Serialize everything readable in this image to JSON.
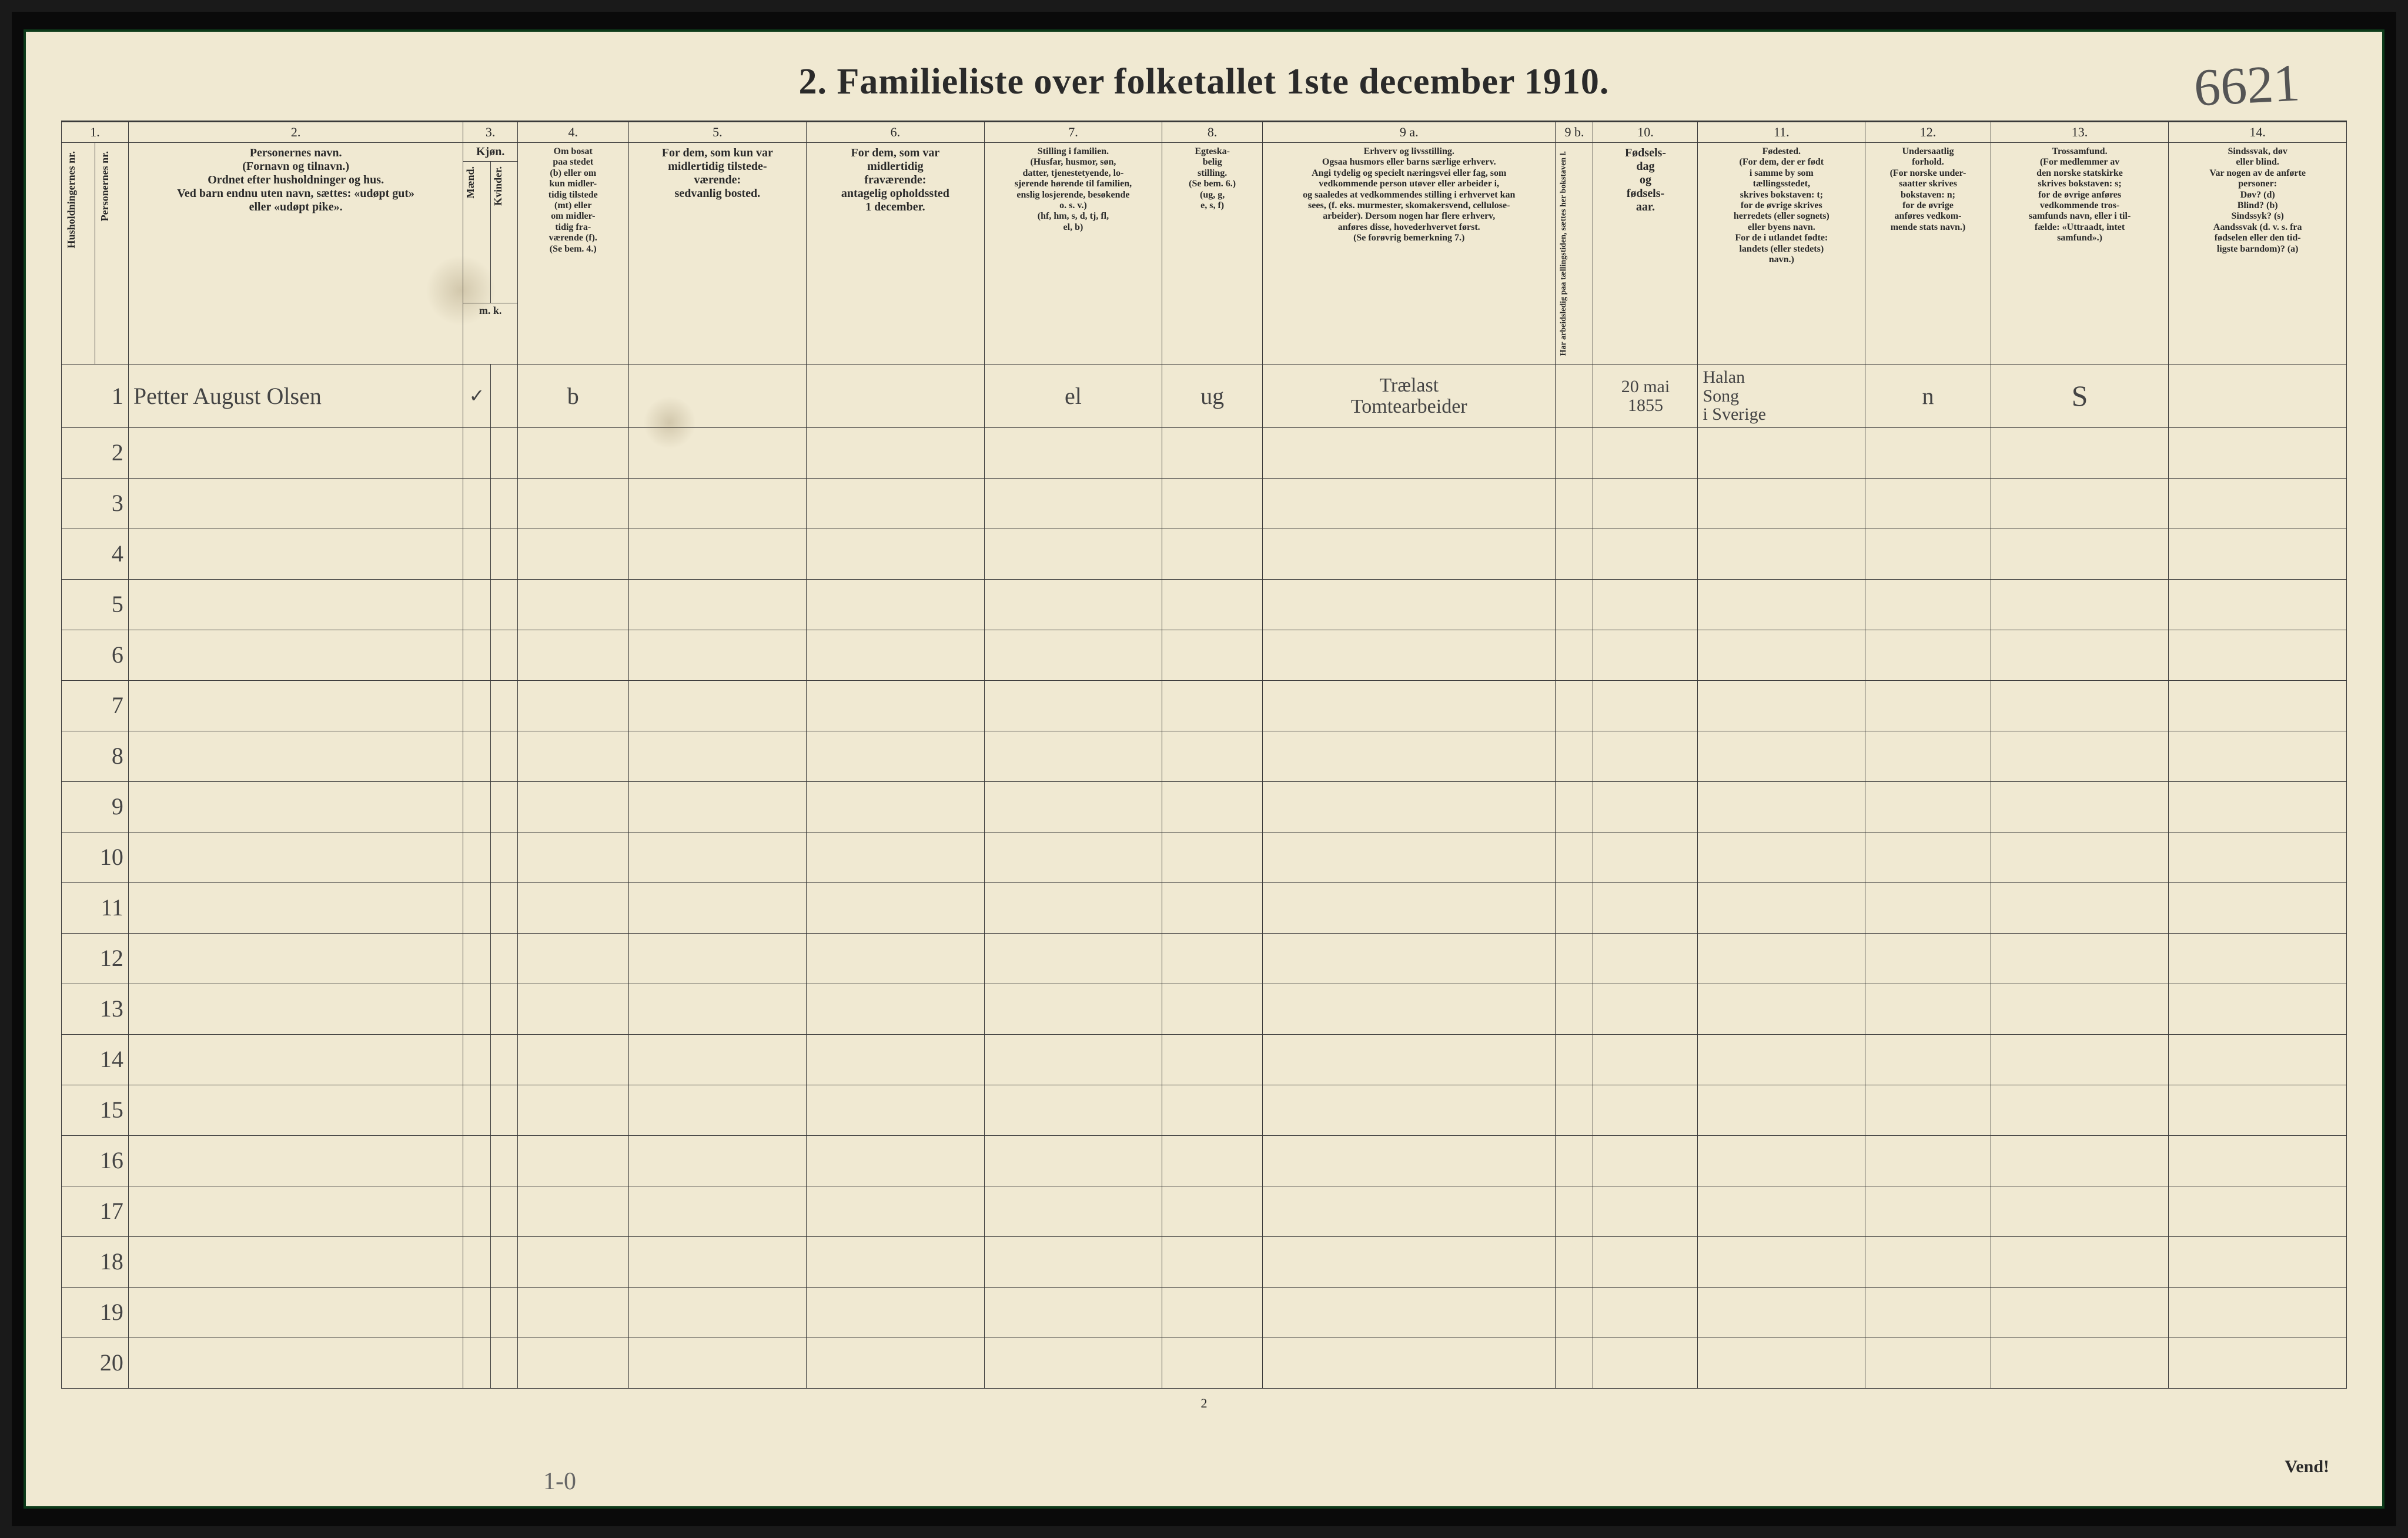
{
  "title": "2.   Familieliste over folketallet 1ste december 1910.",
  "handwritten_corner": "6621",
  "colnums": [
    "1.",
    "2.",
    "3.",
    "4.",
    "5.",
    "6.",
    "7.",
    "8.",
    "9 a.",
    "9 b.",
    "10.",
    "11.",
    "12.",
    "13.",
    "14."
  ],
  "headers": {
    "c1": "Husholdningernes nr.",
    "c1b": "Personernes nr.",
    "c2": "Personernes navn.\n(Fornavn og tilnavn.)\nOrdnet efter husholdninger og hus.\nVed barn endnu uten navn, sættes: «udøpt gut»\neller «udøpt pike».",
    "c3": "Kjøn.",
    "c3a": "Mænd.",
    "c3b": "Kvinder.",
    "c3mk": "m.  k.",
    "c4": "Om bosat\npaa stedet\n(b) eller om\nkun midler-\ntidig tilstede\n(mt) eller\nom midler-\ntidig fra-\nværende (f).\n(Se bem. 4.)",
    "c5": "For dem, som kun var\nmidlertidig tilstede-\nværende:\nsedvanlig bosted.",
    "c6": "For dem, som var\nmidlertidig\nfraværende:\nantagelig opholdssted\n1 december.",
    "c7": "Stilling i familien.\n(Husfar, husmor, søn,\ndatter, tjenestetyende, lo-\nsjerende hørende til familien,\nenslig losjerende, besøkende\no. s. v.)\n(hf, hm, s, d, tj, fl,\nel, b)",
    "c8": "Egteska-\nbelig\nstilling.\n(Se bem. 6.)\n(ug, g,\ne, s, f)",
    "c9a": "Erhverv og livsstilling.\nOgsaa husmors eller barns særlige erhverv.\nAngi tydelig og specielt næringsvei eller fag, som\nvedkommende person utøver eller arbeider i,\nog saaledes at vedkommendes stilling i erhvervet kan\nsees, (f. eks. murmester, skomakersvend, cellulose-\narbeider). Dersom nogen har flere erhverv,\nanføres disse, hovederhvervet først.\n(Se forøvrig bemerkning 7.)",
    "c9b": "Har arbeidsledig\npaa tællingstiden, sættes\nher bokstaven l.",
    "c10": "Fødsels-\ndag\nog\nfødsels-\naar.",
    "c11": "Fødested.\n(For dem, der er født\ni samme by som\ntællingsstedet,\nskrives bokstaven: t;\nfor de øvrige skrives\nherredets (eller sognets)\neller byens navn.\nFor de i utlandet fødte:\nlandets (eller stedets)\nnavn.)",
    "c12": "Undersaatlig\nforhold.\n(For norske under-\nsaatter skrives\nbokstaven: n;\nfor de øvrige\nanføres vedkom-\nmende stats navn.)",
    "c13": "Trossamfund.\n(For medlemmer av\nden norske statskirke\nskrives bokstaven: s;\nfor de øvrige anføres\nvedkommende tros-\nsamfunds navn, eller i til-\nfælde: «Uttraadt, intet\nsamfund».)",
    "c14": "Sindssvak, døv\neller blind.\nVar nogen av de anførte\npersoner:\nDøv?      (d)\nBlind?    (b)\nSindssyk? (s)\nAandssvak (d. v. s. fra\nfødselen eller den tid-\nligste barndom)? (a)"
  },
  "row1": {
    "num": "1",
    "name": "Petter August Olsen",
    "kj_m": "✓",
    "c4": "b",
    "c7": "el",
    "c8": "ug",
    "c9a": "Trælast\nTomtearbeider",
    "c9b": "",
    "c10": "20 mai\n1855",
    "c11": "Halan\nSong\ni Sverige",
    "c12": "n",
    "c13": "S"
  },
  "rownums": [
    "2",
    "3",
    "4",
    "5",
    "6",
    "7",
    "8",
    "9",
    "10",
    "11",
    "12",
    "13",
    "14",
    "15",
    "16",
    "17",
    "18",
    "19",
    "20"
  ],
  "footer_page": "2",
  "footer_right": "Vend!",
  "footer_hand": "1-0",
  "colors": {
    "paper": "#f0e9d2",
    "ink": "#2a2a2a",
    "border": "#3a3a3a",
    "hand": "#444",
    "frame": "#0d3b1a",
    "outer": "#1a1a1a"
  },
  "colwidths_pct": [
    1.6,
    1.6,
    16.0,
    1.3,
    1.3,
    5.3,
    8.5,
    8.5,
    8.5,
    4.8,
    14.0,
    1.8,
    5.0,
    8.0,
    6.0,
    8.5,
    8.5
  ],
  "total_rows": 20,
  "header_fontsize_pt": 15,
  "title_fontsize_pt": 47,
  "data_fontsize_pt": 30
}
